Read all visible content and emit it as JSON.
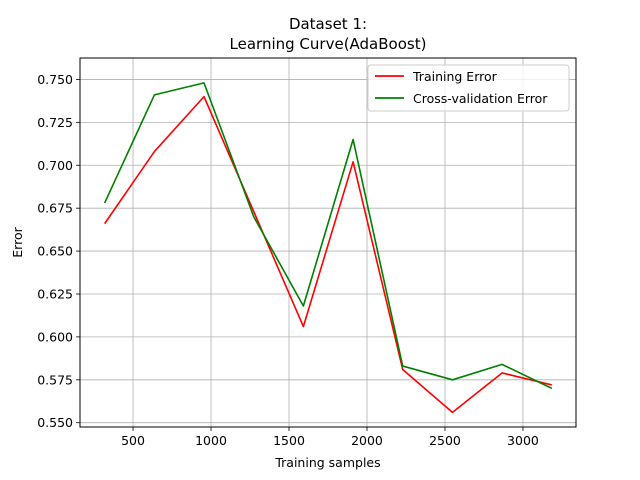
{
  "chart_data": {
    "type": "line",
    "title_lines": [
      "Dataset 1:",
      "Learning Curve(AdaBoost)"
    ],
    "xlabel": "Training samples",
    "ylabel": "Error",
    "xlim": [
      160,
      3340
    ],
    "ylim": [
      0.5475,
      0.7625
    ],
    "xticks": [
      500,
      1000,
      1500,
      2000,
      2500,
      3000
    ],
    "xtick_labels": [
      "500",
      "1000",
      "1500",
      "2000",
      "2500",
      "3000"
    ],
    "yticks": [
      0.55,
      0.575,
      0.6,
      0.625,
      0.65,
      0.675,
      0.7,
      0.725,
      0.75
    ],
    "ytick_labels": [
      "0.550",
      "0.575",
      "0.600",
      "0.625",
      "0.650",
      "0.675",
      "0.700",
      "0.725",
      "0.750"
    ],
    "grid": true,
    "legend_position": "top-right",
    "x": [
      318,
      637,
      955,
      1274,
      1592,
      1911,
      2229,
      2548,
      2866,
      3185
    ],
    "series": [
      {
        "name": "Training Error",
        "color": "#ff0000",
        "values": [
          0.666,
          0.708,
          0.74,
          0.673,
          0.606,
          0.702,
          0.581,
          0.556,
          0.579,
          0.572
        ]
      },
      {
        "name": "Cross-validation Error",
        "color": "#008000",
        "values": [
          0.678,
          0.741,
          0.748,
          0.67,
          0.618,
          0.715,
          0.583,
          0.575,
          0.584,
          0.57
        ]
      }
    ]
  }
}
